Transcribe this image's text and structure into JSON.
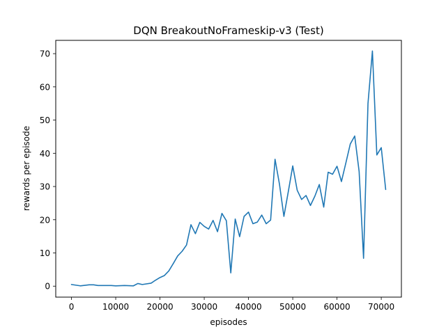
{
  "chart_data": {
    "type": "line",
    "title": "DQN BreakoutNoFrameskip-v3 (Test)",
    "xlabel": "episodes",
    "ylabel": "rewards per episode",
    "xlim": [
      -3550,
      74550
    ],
    "ylim": [
      -3.3,
      74.0
    ],
    "xticks": [
      0,
      10000,
      20000,
      30000,
      40000,
      50000,
      60000,
      70000
    ],
    "yticks": [
      0,
      10,
      20,
      30,
      40,
      50,
      60,
      70
    ],
    "grid": false,
    "line_color": "#1f77b4",
    "series": [
      {
        "x": [
          0,
          2000,
          4000,
          5000,
          6000,
          8000,
          9000,
          10000,
          12000,
          14000,
          15000,
          16000,
          18000,
          19000,
          20000,
          21000,
          22000,
          23000,
          24000,
          25000,
          26000,
          27000,
          28000,
          29000,
          30000,
          31000,
          32000,
          33000,
          34000,
          35000,
          36000,
          37000,
          38000,
          39000,
          40000,
          41000,
          42000,
          43000,
          44000,
          45000,
          46000,
          47000,
          48000,
          49000,
          50000,
          51000,
          52000,
          53000,
          54000,
          55000,
          56000,
          57000,
          58000,
          59000,
          60000,
          61000,
          62000,
          63000,
          64000,
          65000,
          66000,
          67000,
          68000,
          69000,
          70000,
          71000
        ],
        "y": [
          0.5,
          0.1,
          0.4,
          0.4,
          0.2,
          0.2,
          0.2,
          0.1,
          0.2,
          0.1,
          0.8,
          0.5,
          0.9,
          1.8,
          2.6,
          3.2,
          4.6,
          6.8,
          9.1,
          10.5,
          12.4,
          18.5,
          15.8,
          19.2,
          18.0,
          17.2,
          19.8,
          16.4,
          21.9,
          19.7,
          4.0,
          20.2,
          14.9,
          21.0,
          22.3,
          18.8,
          19.3,
          21.4,
          18.8,
          19.9,
          38.2,
          30.7,
          21.0,
          28.5,
          36.2,
          28.9,
          26.1,
          27.3,
          24.3,
          27.1,
          30.6,
          23.8,
          34.3,
          33.7,
          36.1,
          31.5,
          37.1,
          42.8,
          45.2,
          34.5,
          8.4,
          55.0,
          70.8,
          39.5,
          41.7,
          29.1
        ]
      }
    ]
  }
}
